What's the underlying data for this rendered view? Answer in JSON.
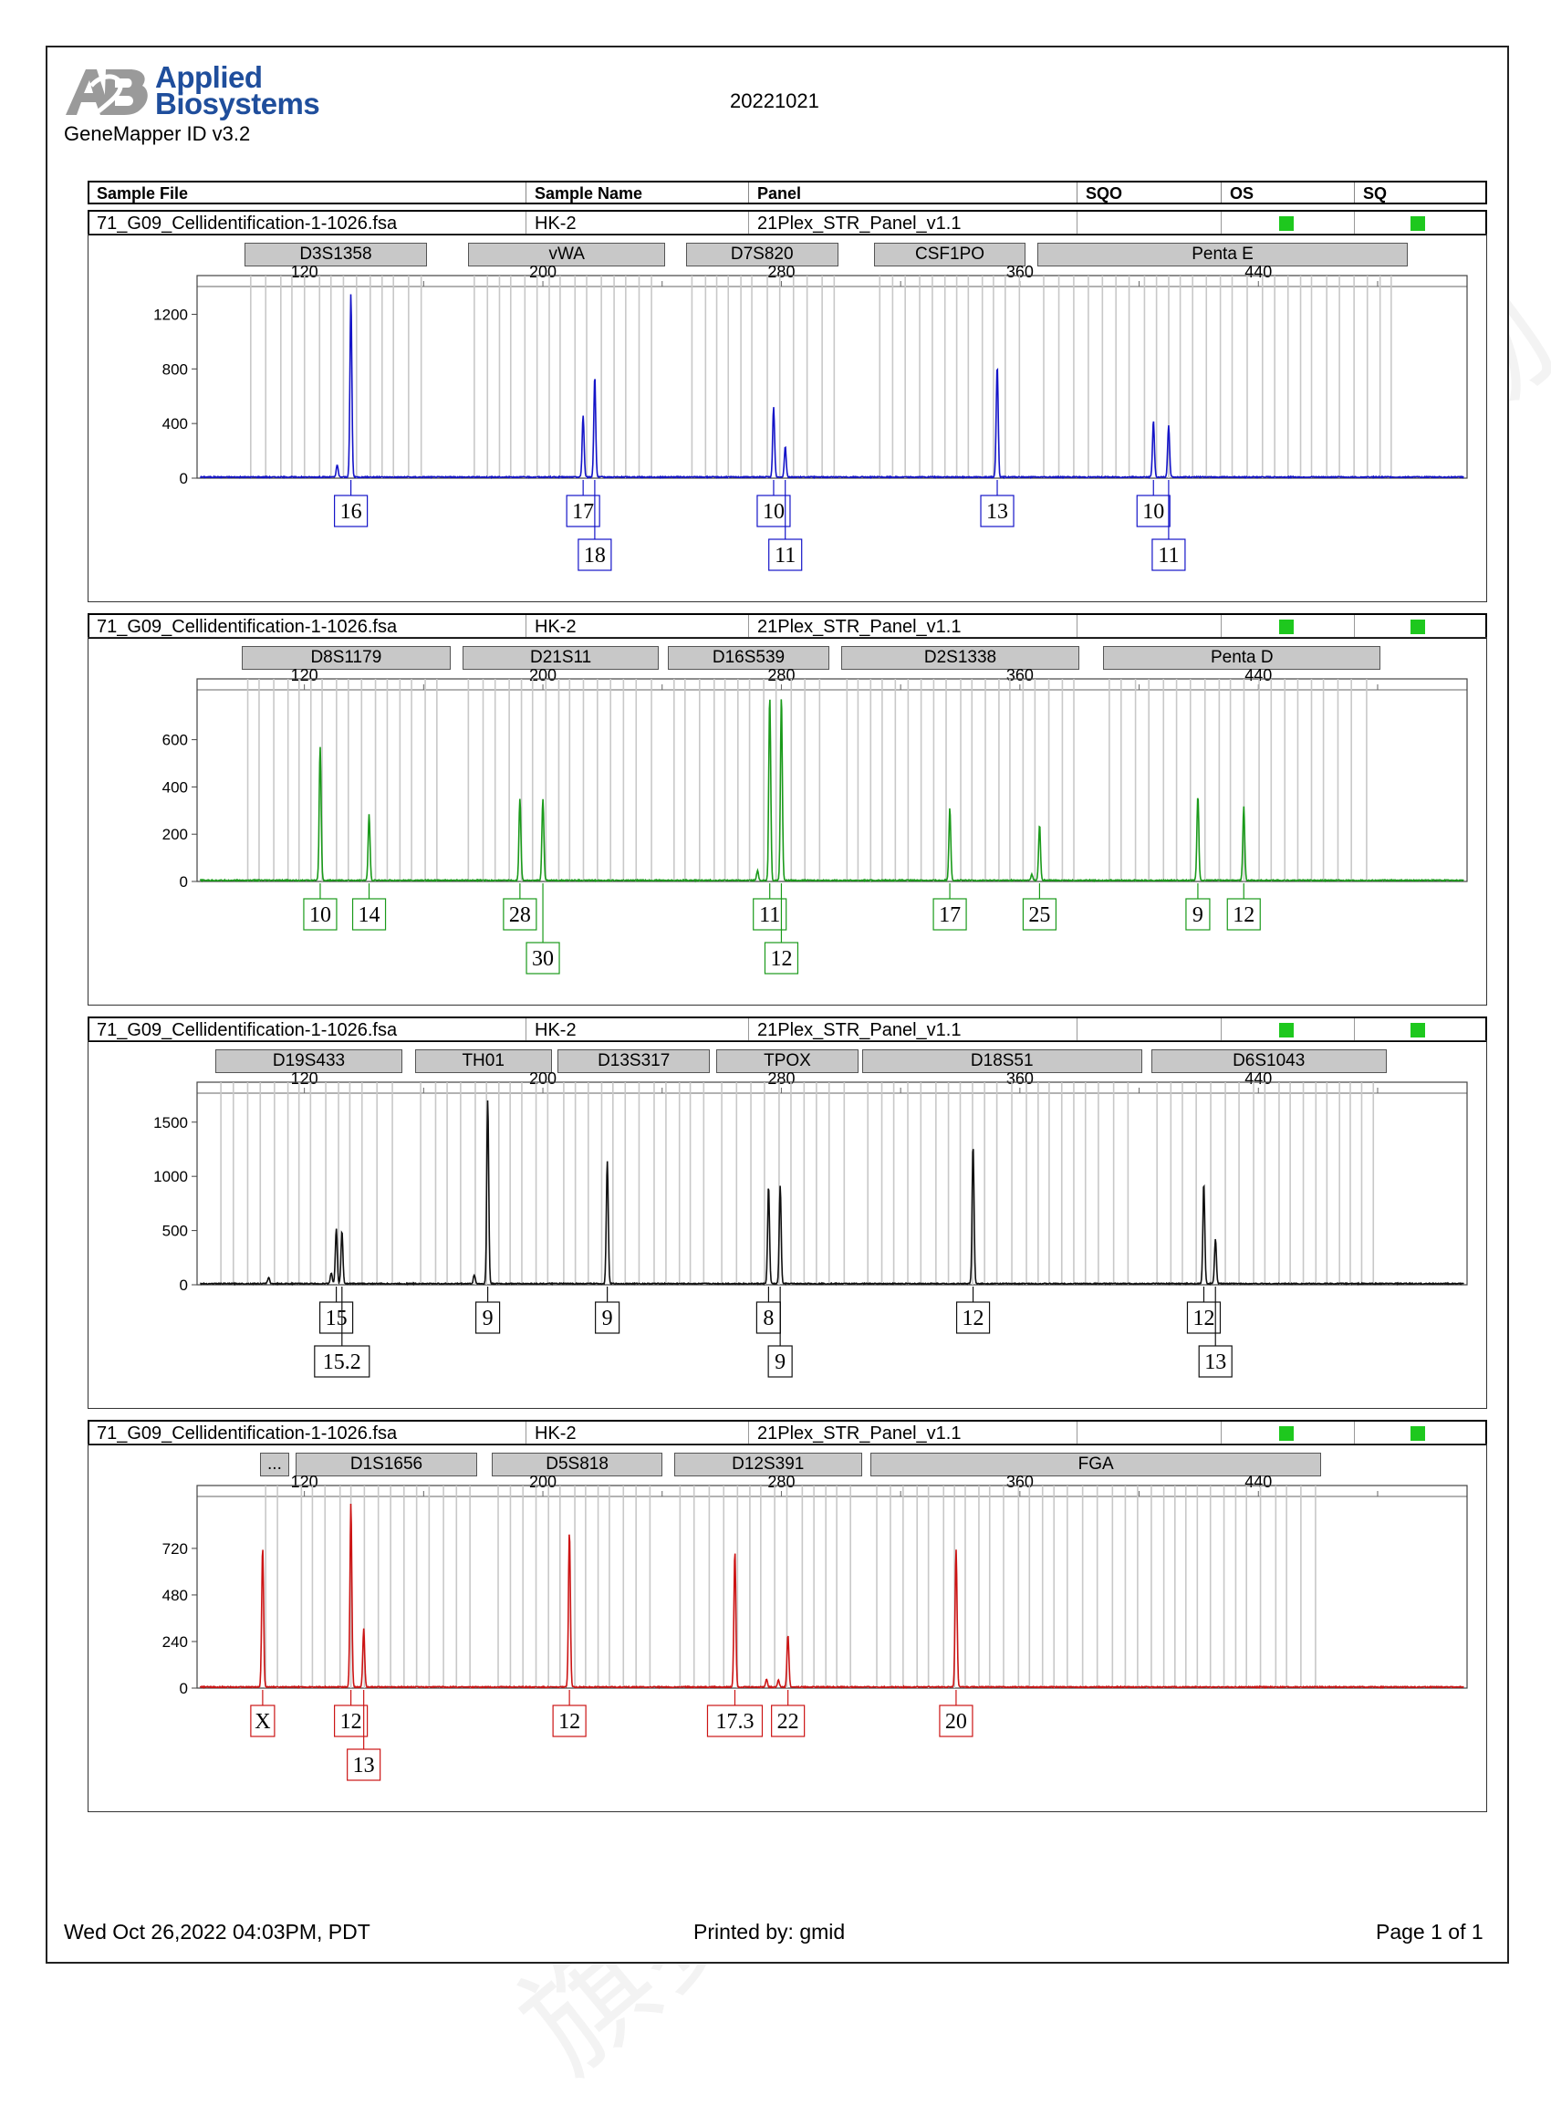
{
  "header": {
    "logo_line1": "Applied",
    "logo_line2": "Biosystems",
    "software": "GeneMapper ID v3.2",
    "run_name": "20221021"
  },
  "columns": {
    "sample_file": "Sample File",
    "sample_name": "Sample Name",
    "panel": "Panel",
    "sqo": "SQO",
    "os": "OS",
    "sq": "SQ"
  },
  "colors": {
    "flag": "#1ec81e",
    "locus_bg": "#c8c8c8",
    "gridline": "#c8c8c8",
    "logo": "#1f4e9c"
  },
  "watermark_text": "旗赛生物",
  "footer": {
    "date": "Wed Oct 26,2022 04:03PM, PDT",
    "printed_by": "Printed by: gmid",
    "page": "Page 1 of 1"
  },
  "chart_data": [
    {
      "type": "line",
      "sample_file": "71_G09_Cellidentification-1-1026.fsa",
      "sample_name": "HK-2",
      "panel": "21Plex_STR_Panel_v1.1",
      "color": "#1414c8",
      "xticks": [
        120,
        200,
        280,
        360,
        440
      ],
      "xlim": [
        84,
        510
      ],
      "ylim": [
        0,
        1350
      ],
      "yticks": [
        0,
        400,
        800,
        1200
      ],
      "loci": [
        {
          "name": "D3S1358",
          "start": 100,
          "end": 161
        },
        {
          "name": "vWA",
          "start": 175,
          "end": 241
        },
        {
          "name": "D7S820",
          "start": 248,
          "end": 299
        },
        {
          "name": "CSF1PO",
          "start": 311,
          "end": 362
        },
        {
          "name": "Penta E",
          "start": 366,
          "end": 490
        }
      ],
      "peaks": [
        {
          "x": 135.6,
          "y": 1340,
          "label": "16",
          "row": 1
        },
        {
          "x": 213.5,
          "y": 450,
          "label": "17",
          "row": 1
        },
        {
          "x": 217.4,
          "y": 740,
          "label": "18",
          "row": 2
        },
        {
          "x": 277.4,
          "y": 510,
          "label": "10",
          "row": 1
        },
        {
          "x": 281.3,
          "y": 225,
          "label": "11",
          "row": 2
        },
        {
          "x": 352.4,
          "y": 800,
          "label": "13",
          "row": 1
        },
        {
          "x": 404.8,
          "y": 415,
          "label": "10",
          "row": 1
        },
        {
          "x": 409.9,
          "y": 375,
          "label": "11",
          "row": 2
        }
      ],
      "minor_peaks": [
        {
          "x": 131,
          "y": 90
        },
        {
          "x": 352,
          "y": 30
        }
      ]
    },
    {
      "type": "line",
      "sample_file": "71_G09_Cellidentification-1-1026.fsa",
      "sample_name": "HK-2",
      "panel": "21Plex_STR_Panel_v1.1",
      "color": "#1a9a1a",
      "xticks": [
        120,
        200,
        280,
        360,
        440
      ],
      "xlim": [
        84,
        510
      ],
      "ylim": [
        0,
        780
      ],
      "yticks": [
        0,
        200,
        400,
        600
      ],
      "loci": [
        {
          "name": "D8S1179",
          "start": 99,
          "end": 169
        },
        {
          "name": "D21S11",
          "start": 173,
          "end": 239
        },
        {
          "name": "D16S539",
          "start": 242,
          "end": 296
        },
        {
          "name": "D2S1338",
          "start": 300,
          "end": 380
        },
        {
          "name": "Penta D",
          "start": 388,
          "end": 481
        }
      ],
      "peaks": [
        {
          "x": 125.3,
          "y": 565,
          "label": "10",
          "row": 1
        },
        {
          "x": 141.7,
          "y": 280,
          "label": "14",
          "row": 1
        },
        {
          "x": 192.3,
          "y": 345,
          "label": "28",
          "row": 1
        },
        {
          "x": 200.0,
          "y": 345,
          "label": "30",
          "row": 2
        },
        {
          "x": 276.1,
          "y": 780,
          "label": "11",
          "row": 1
        },
        {
          "x": 280.0,
          "y": 780,
          "label": "12",
          "row": 2
        },
        {
          "x": 336.5,
          "y": 305,
          "label": "17",
          "row": 1
        },
        {
          "x": 366.6,
          "y": 235,
          "label": "25",
          "row": 1
        },
        {
          "x": 419.7,
          "y": 360,
          "label": "9",
          "row": 1
        },
        {
          "x": 435.1,
          "y": 315,
          "label": "12",
          "row": 1
        }
      ],
      "minor_peaks": [
        {
          "x": 272,
          "y": 40
        },
        {
          "x": 364,
          "y": 25
        }
      ]
    },
    {
      "type": "line",
      "sample_file": "71_G09_Cellidentification-1-1026.fsa",
      "sample_name": "HK-2",
      "panel": "21Plex_STR_Panel_v1.1",
      "color": "#111111",
      "xticks": [
        120,
        200,
        280,
        360,
        440
      ],
      "xlim": [
        84,
        510
      ],
      "ylim": [
        0,
        1700
      ],
      "yticks": [
        0,
        500,
        1000,
        1500
      ],
      "loci": [
        {
          "name": "D19S433",
          "start": 90,
          "end": 153
        },
        {
          "name": "TH01",
          "start": 157,
          "end": 203
        },
        {
          "name": "D13S317",
          "start": 205,
          "end": 256
        },
        {
          "name": "TPOX",
          "start": 258,
          "end": 306
        },
        {
          "name": "D18S51",
          "start": 307,
          "end": 401
        },
        {
          "name": "D6S1043",
          "start": 404,
          "end": 483
        }
      ],
      "peaks": [
        {
          "x": 130.7,
          "y": 510,
          "label": "15",
          "row": 1
        },
        {
          "x": 132.6,
          "y": 490,
          "label": "15.2",
          "row": 2
        },
        {
          "x": 181.5,
          "y": 1700,
          "label": "9",
          "row": 1
        },
        {
          "x": 221.6,
          "y": 1130,
          "label": "9",
          "row": 1
        },
        {
          "x": 275.7,
          "y": 900,
          "label": "8",
          "row": 1
        },
        {
          "x": 279.6,
          "y": 900,
          "label": "9",
          "row": 2
        },
        {
          "x": 344.3,
          "y": 1280,
          "label": "12",
          "row": 1
        },
        {
          "x": 421.7,
          "y": 930,
          "label": "12",
          "row": 1
        },
        {
          "x": 425.6,
          "y": 410,
          "label": "13",
          "row": 2
        }
      ],
      "minor_peaks": [
        {
          "x": 108,
          "y": 60
        },
        {
          "x": 177,
          "y": 80
        },
        {
          "x": 129,
          "y": 100
        }
      ]
    },
    {
      "type": "line",
      "sample_file": "71_G09_Cellidentification-1-1026.fsa",
      "sample_name": "HK-2",
      "panel": "21Plex_STR_Panel_v1.1",
      "color": "#cc1414",
      "xticks": [
        120,
        200,
        280,
        360,
        440
      ],
      "xlim": [
        84,
        510
      ],
      "ylim": [
        0,
        950
      ],
      "yticks": [
        0,
        240,
        480,
        720
      ],
      "loci": [
        {
          "name": "...",
          "start": 105,
          "end": 115
        },
        {
          "name": "D1S1656",
          "start": 117,
          "end": 178
        },
        {
          "name": "D5S818",
          "start": 183,
          "end": 240
        },
        {
          "name": "D12S391",
          "start": 244,
          "end": 307
        },
        {
          "name": "FGA",
          "start": 310,
          "end": 461
        }
      ],
      "peaks": [
        {
          "x": 106.0,
          "y": 720,
          "label": "X",
          "row": 1
        },
        {
          "x": 135.6,
          "y": 950,
          "label": "12",
          "row": 1
        },
        {
          "x": 139.9,
          "y": 300,
          "label": "13",
          "row": 2
        },
        {
          "x": 208.9,
          "y": 800,
          "label": "12",
          "row": 1
        },
        {
          "x": 264.4,
          "y": 700,
          "label": "17.3",
          "row": 1
        },
        {
          "x": 282.2,
          "y": 270,
          "label": "22",
          "row": 1
        },
        {
          "x": 338.6,
          "y": 710,
          "label": "20",
          "row": 1
        }
      ],
      "minor_peaks": [
        {
          "x": 275,
          "y": 40
        },
        {
          "x": 279,
          "y": 35
        }
      ]
    }
  ]
}
